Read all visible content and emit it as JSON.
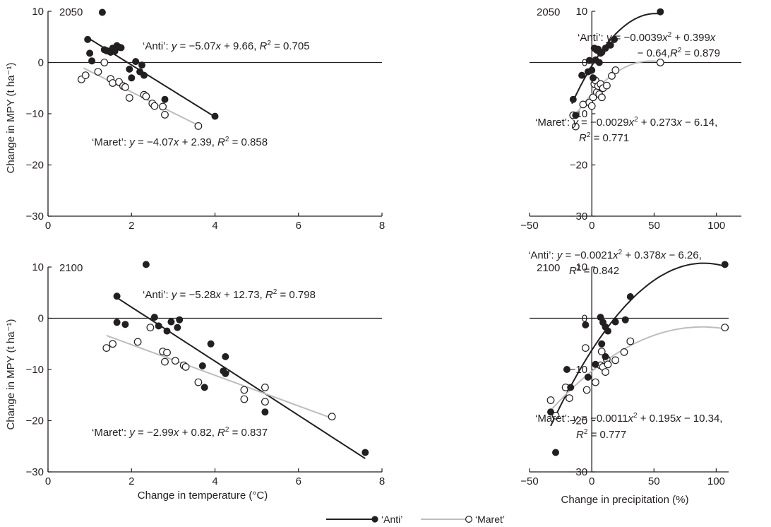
{
  "figure": {
    "legend": [
      {
        "label": "‘Anti’",
        "marker": "filled-circle",
        "color": "#231f20"
      },
      {
        "label": "‘Maret’",
        "marker": "open-circle",
        "color": "#bdbdbd"
      }
    ]
  },
  "chart_data": [
    {
      "type": "scatter",
      "panel_label": "2050",
      "xlabel": "",
      "ylabel": "Change in MPY (t ha⁻¹)",
      "xlim": [
        0,
        8
      ],
      "ylim": [
        -30,
        10
      ],
      "xticks": [
        0,
        2,
        4,
        6,
        8
      ],
      "yticks": [
        -30,
        -20,
        -10,
        0,
        10
      ],
      "series": [
        {
          "name": "‘Anti’",
          "marker": "filled",
          "color": "#231f20",
          "fit": {
            "kind": "linear",
            "coef": [
              9.66,
              -5.07
            ],
            "range": [
              1.0,
              4.0
            ]
          },
          "equation": {
            "cultivar": "‘Anti’: ",
            "y": "y",
            "eq": " = −5.07",
            "x": "x",
            "rest": " + 9.66, ",
            "R": "R",
            "sup": "2",
            "val": " = 0.705"
          },
          "points": [
            [
              0.95,
              4.5
            ],
            [
              1.0,
              1.8
            ],
            [
              1.05,
              0.3
            ],
            [
              1.3,
              9.8
            ],
            [
              1.35,
              2.5
            ],
            [
              1.4,
              2.3
            ],
            [
              1.45,
              2.2
            ],
            [
              1.5,
              2.0
            ],
            [
              1.55,
              2.8
            ],
            [
              1.6,
              2.2
            ],
            [
              1.65,
              3.3
            ],
            [
              1.7,
              3.0
            ],
            [
              1.75,
              2.9
            ],
            [
              1.95,
              -1.3
            ],
            [
              2.0,
              -3.0
            ],
            [
              2.1,
              0.2
            ],
            [
              2.2,
              -1.8
            ],
            [
              2.25,
              -0.5
            ],
            [
              2.3,
              -2.5
            ],
            [
              2.8,
              -7.2
            ],
            [
              4.0,
              -10.5
            ]
          ]
        },
        {
          "name": "‘Maret’",
          "marker": "open",
          "color": "#bdbdbd",
          "fit": {
            "kind": "linear",
            "coef": [
              2.39,
              -4.07
            ],
            "range": [
              0.85,
              3.6
            ]
          },
          "equation": {
            "cultivar": "‘Maret’: ",
            "y": "y",
            "eq": " = −4.07",
            "x": "x",
            "rest": " + 2.39, ",
            "R": "R",
            "sup": "2",
            "val": " = 0.858"
          },
          "points": [
            [
              0.8,
              -3.3
            ],
            [
              0.9,
              -2.5
            ],
            [
              1.2,
              -1.8
            ],
            [
              1.35,
              0.0
            ],
            [
              1.5,
              -3.2
            ],
            [
              1.55,
              -4.0
            ],
            [
              1.7,
              -3.8
            ],
            [
              1.8,
              -4.6
            ],
            [
              1.85,
              -4.8
            ],
            [
              1.95,
              -6.9
            ],
            [
              2.3,
              -6.3
            ],
            [
              2.35,
              -6.6
            ],
            [
              2.5,
              -8.0
            ],
            [
              2.55,
              -8.5
            ],
            [
              2.75,
              -8.6
            ],
            [
              2.8,
              -10.2
            ],
            [
              3.6,
              -12.4
            ]
          ]
        }
      ]
    },
    {
      "type": "scatter",
      "panel_label": "2050",
      "xlabel": "",
      "ylabel": "",
      "xlim": [
        -50,
        120
      ],
      "ylim": [
        -30,
        10
      ],
      "xticks": [
        -50,
        0,
        50,
        100
      ],
      "yticks": [
        -30,
        -20,
        -10,
        0,
        10
      ],
      "series": [
        {
          "name": "‘Anti’",
          "marker": "filled",
          "color": "#231f20",
          "fit": {
            "kind": "quadratic",
            "coef": [
              -0.64,
              0.399,
              -0.0039
            ],
            "range": [
              -16,
              55
            ]
          },
          "equation": {
            "cultivar": "‘Anti’: ",
            "y": "y",
            "eq": " = −0.0039",
            "x": "x",
            "sup": "2",
            "rest": " + 0.399",
            "x2": "x",
            "line2": "− 0.64,",
            "R": "R",
            "val": " = 0.879"
          },
          "points": [
            [
              -15,
              -7.2
            ],
            [
              -13,
              -10.3
            ],
            [
              -8,
              -2.5
            ],
            [
              -3,
              -1.8
            ],
            [
              -2,
              0.4
            ],
            [
              0,
              -1.5
            ],
            [
              1,
              -3.0
            ],
            [
              2,
              2.8
            ],
            [
              3,
              0.5
            ],
            [
              4,
              2.4
            ],
            [
              5,
              2.6
            ],
            [
              6,
              0.0
            ],
            [
              7,
              1.8
            ],
            [
              8,
              2.0
            ],
            [
              11,
              2.8
            ],
            [
              15,
              3.4
            ],
            [
              18,
              4.5
            ],
            [
              55,
              9.9
            ]
          ]
        },
        {
          "name": "‘Maret’",
          "marker": "open",
          "color": "#bdbdbd",
          "fit": {
            "kind": "quadratic",
            "coef": [
              -6.14,
              0.273,
              -0.0029
            ],
            "range": [
              -16,
              55
            ]
          },
          "equation": {
            "cultivar": "‘Maret’: ",
            "y": "y",
            "eq": " = −0.0029",
            "x": "x",
            "sup": "2",
            "rest": " + 0.273",
            "x2": "x",
            "rest2": " − 6.14,",
            "R": "R",
            "val": " = 0.771"
          },
          "points": [
            [
              -15,
              -10.3
            ],
            [
              -13,
              -12.5
            ],
            [
              -7,
              -8.2
            ],
            [
              -2,
              -7.8
            ],
            [
              0,
              -8.5
            ],
            [
              1,
              -6.8
            ],
            [
              2,
              -4.2
            ],
            [
              3,
              -3.5
            ],
            [
              4,
              -5.8
            ],
            [
              5,
              -4.6
            ],
            [
              6,
              -6.2
            ],
            [
              7,
              -4.2
            ],
            [
              8,
              -6.8
            ],
            [
              9,
              -5.0
            ],
            [
              12,
              -4.5
            ],
            [
              16,
              -2.6
            ],
            [
              19,
              -1.5
            ],
            [
              55,
              0.0
            ]
          ]
        }
      ]
    },
    {
      "type": "scatter",
      "panel_label": "2100",
      "xlabel": "Change in temperature (°C)",
      "ylabel": "Change in MPY (t ha⁻¹)",
      "xlim": [
        0,
        8
      ],
      "ylim": [
        -30,
        10
      ],
      "xticks": [
        0,
        2,
        4,
        6,
        8
      ],
      "yticks": [
        -30,
        -20,
        -10,
        0,
        10
      ],
      "series": [
        {
          "name": "‘Anti’",
          "marker": "filled",
          "color": "#231f20",
          "fit": {
            "kind": "linear",
            "coef": [
              12.73,
              -5.28
            ],
            "range": [
              1.65,
              7.6
            ]
          },
          "equation": {
            "cultivar": "‘Anti’: ",
            "y": "y",
            "eq": " = −5.28",
            "x": "x",
            "rest": " + 12.73, ",
            "R": "R",
            "sup": "2",
            "val": " = 0.798"
          },
          "points": [
            [
              1.65,
              4.3
            ],
            [
              1.65,
              -0.8
            ],
            [
              1.85,
              -1.2
            ],
            [
              2.35,
              10.5
            ],
            [
              2.55,
              0.2
            ],
            [
              2.65,
              -1.5
            ],
            [
              2.85,
              -2.5
            ],
            [
              2.95,
              -0.7
            ],
            [
              3.1,
              -1.8
            ],
            [
              3.15,
              -0.3
            ],
            [
              3.7,
              -9.3
            ],
            [
              3.75,
              -13.5
            ],
            [
              3.9,
              -5.0
            ],
            [
              4.2,
              -10.3
            ],
            [
              4.25,
              -7.5
            ],
            [
              4.25,
              -10.8
            ],
            [
              5.2,
              -18.3
            ],
            [
              7.6,
              -26.2
            ]
          ]
        },
        {
          "name": "‘Maret’",
          "marker": "open",
          "color": "#bdbdbd",
          "fit": {
            "kind": "linear",
            "coef": [
              0.82,
              -2.99
            ],
            "range": [
              1.4,
              6.8
            ]
          },
          "equation": {
            "cultivar": "‘Maret’: ",
            "y": "y",
            "eq": " = −2.99",
            "x": "x",
            "rest": " + 0.82, ",
            "R": "R",
            "sup": "2",
            "val": " = 0.837"
          },
          "points": [
            [
              1.4,
              -5.8
            ],
            [
              1.55,
              -5.0
            ],
            [
              2.15,
              -4.6
            ],
            [
              2.45,
              -1.8
            ],
            [
              2.75,
              -6.5
            ],
            [
              2.8,
              -8.5
            ],
            [
              2.85,
              -6.7
            ],
            [
              3.05,
              -8.3
            ],
            [
              3.25,
              -9.2
            ],
            [
              3.3,
              -9.5
            ],
            [
              3.6,
              -12.5
            ],
            [
              4.25,
              -10.5
            ],
            [
              4.7,
              -14.0
            ],
            [
              4.7,
              -15.8
            ],
            [
              5.2,
              -13.5
            ],
            [
              5.2,
              -16.3
            ],
            [
              6.8,
              -19.2
            ]
          ]
        }
      ]
    },
    {
      "type": "scatter",
      "panel_label": "2100",
      "xlabel": "Change in precipitation (%)",
      "ylabel": "",
      "xlim": [
        -50,
        110
      ],
      "ylim": [
        -30,
        10
      ],
      "xticks": [
        -50,
        0,
        50,
        100
      ],
      "yticks": [
        -30,
        -20,
        -10,
        0,
        10
      ],
      "series": [
        {
          "name": "‘Anti’",
          "marker": "filled",
          "color": "#231f20",
          "fit": {
            "kind": "quadratic",
            "coef": [
              -6.26,
              0.378,
              -0.0021
            ],
            "range": [
              -33,
              107
            ]
          },
          "equation": {
            "cultivar": "‘Anti’: ",
            "y": "y",
            "eq": " = −0.0021",
            "x": "x",
            "sup": "2",
            "rest": " + 0.378",
            "x2": "x",
            "rest2": " − 6.26,",
            "R": "R",
            "val": " = 0.842"
          },
          "points": [
            [
              -33,
              -18.3
            ],
            [
              -29,
              -26.2
            ],
            [
              -20,
              -10.0
            ],
            [
              -17,
              -13.5
            ],
            [
              -5,
              -1.3
            ],
            [
              -3,
              -11.5
            ],
            [
              3,
              -9.0
            ],
            [
              7,
              0.2
            ],
            [
              8,
              -5.0
            ],
            [
              9,
              -0.8
            ],
            [
              11,
              -7.5
            ],
            [
              11,
              -1.7
            ],
            [
              13,
              -2.5
            ],
            [
              19,
              -0.7
            ],
            [
              27,
              -0.3
            ],
            [
              31,
              4.2
            ],
            [
              107,
              10.5
            ]
          ]
        },
        {
          "name": "‘Maret’",
          "marker": "open",
          "color": "#bdbdbd",
          "fit": {
            "kind": "quadratic",
            "coef": [
              -10.34,
              0.195,
              -0.0011
            ],
            "range": [
              -33,
              107
            ]
          },
          "equation": {
            "cultivar": "‘Maret’: ",
            "y": "y",
            "eq": " = −0.0011",
            "x": "x",
            "sup": "2",
            "rest": " + 0.195",
            "x2": "x",
            "rest2": " − 10.34,",
            "R": "R",
            "val": " = 0.777"
          },
          "points": [
            [
              -33,
              -16.0
            ],
            [
              -29,
              -19.0
            ],
            [
              -21,
              -13.5
            ],
            [
              -18,
              -15.6
            ],
            [
              -5,
              -5.8
            ],
            [
              -4,
              -14.0
            ],
            [
              3,
              -12.5
            ],
            [
              7,
              -9.2
            ],
            [
              8,
              -6.5
            ],
            [
              9,
              -9.5
            ],
            [
              11,
              -10.5
            ],
            [
              12,
              -8.0
            ],
            [
              13,
              -9.0
            ],
            [
              19,
              -8.2
            ],
            [
              26,
              -6.6
            ],
            [
              31,
              -4.5
            ],
            [
              107,
              -1.8
            ]
          ]
        }
      ]
    }
  ]
}
